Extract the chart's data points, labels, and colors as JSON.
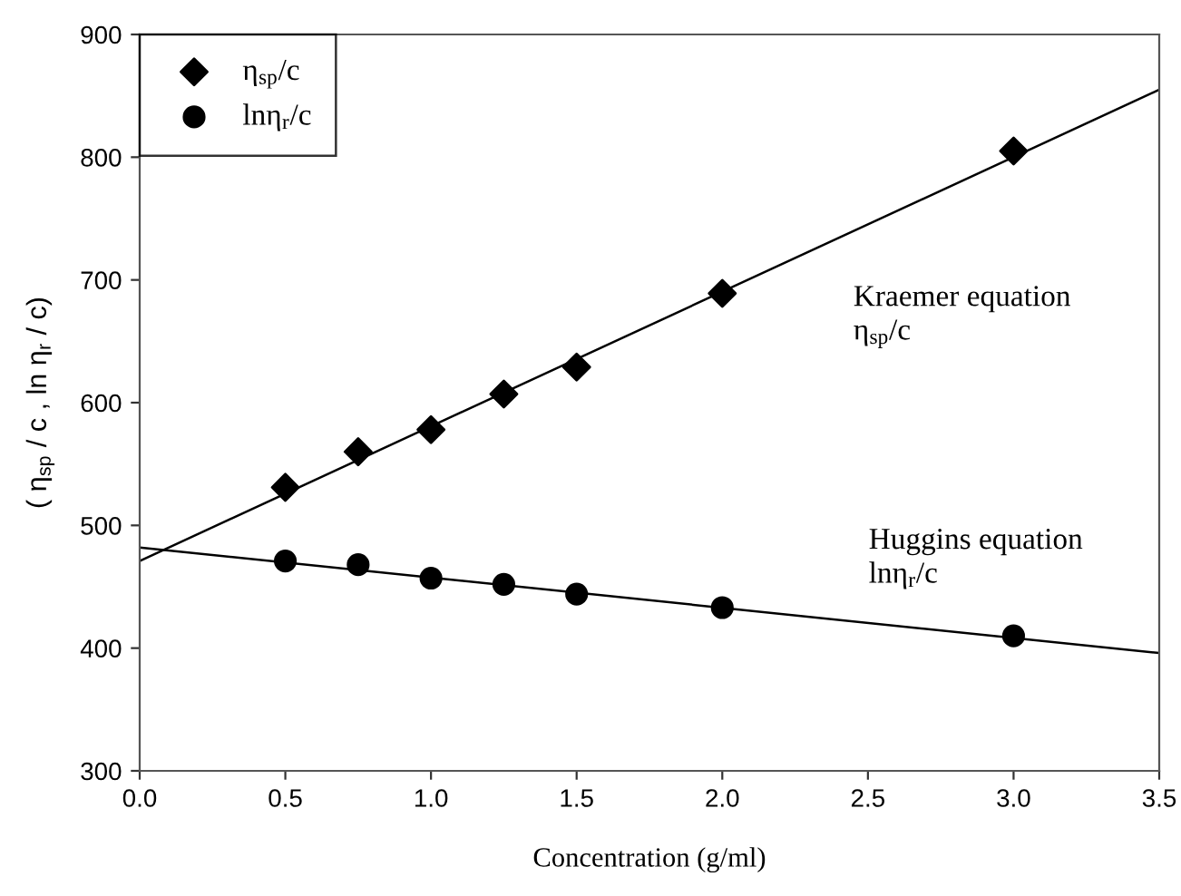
{
  "chart_data": {
    "type": "scatter",
    "xlabel": "Concentration (g/ml)",
    "ylabel": "( η$_{sp}$ / c , ln η$_{r}$ / c)",
    "xlim": [
      0.0,
      3.5
    ],
    "xticks": [
      {
        "value": 0,
        "label": "0.0"
      },
      0.5,
      {
        "value": 1,
        "label": "1.0"
      },
      1.5,
      {
        "value": 2,
        "label": "2.0"
      },
      2.5,
      {
        "value": 3,
        "label": "3.0"
      },
      3.5
    ],
    "ylim": [
      300,
      900
    ],
    "yticks": [
      300,
      400,
      500,
      600,
      700,
      800,
      900
    ],
    "grid": false,
    "legend": "top left",
    "series": [
      {
        "name": "η$_{sp}$/c",
        "marker": "diamond",
        "color": "#000000",
        "x": [
          0.5,
          0.75,
          1.0,
          1.25,
          1.5,
          2.0,
          3.0
        ],
        "values": [
          531,
          560,
          578,
          607,
          629,
          689,
          805
        ]
      },
      {
        "name": "lnη$_{r}$/c",
        "marker": "circle",
        "color": "#000000",
        "x": [
          0.5,
          0.75,
          1.0,
          1.25,
          1.5,
          2.0,
          3.0
        ],
        "values": [
          471,
          468,
          457,
          452,
          444,
          433,
          410
        ]
      },
      {
        "type": "line",
        "marker": "none",
        "line_style": "solid",
        "color": "#000000",
        "x": [
          0.0,
          3.5
        ],
        "values": [
          471,
          855
        ]
      },
      {
        "type": "line",
        "marker": "none",
        "line_style": "solid",
        "color": "#000000",
        "x": [
          0.0,
          3.5
        ],
        "values": [
          482,
          396
        ]
      }
    ],
    "annotations": [
      "Kraemer equation\nη$_{sp}$/c",
      "Huggins equation\nlnη$_{r}$/c"
    ]
  }
}
